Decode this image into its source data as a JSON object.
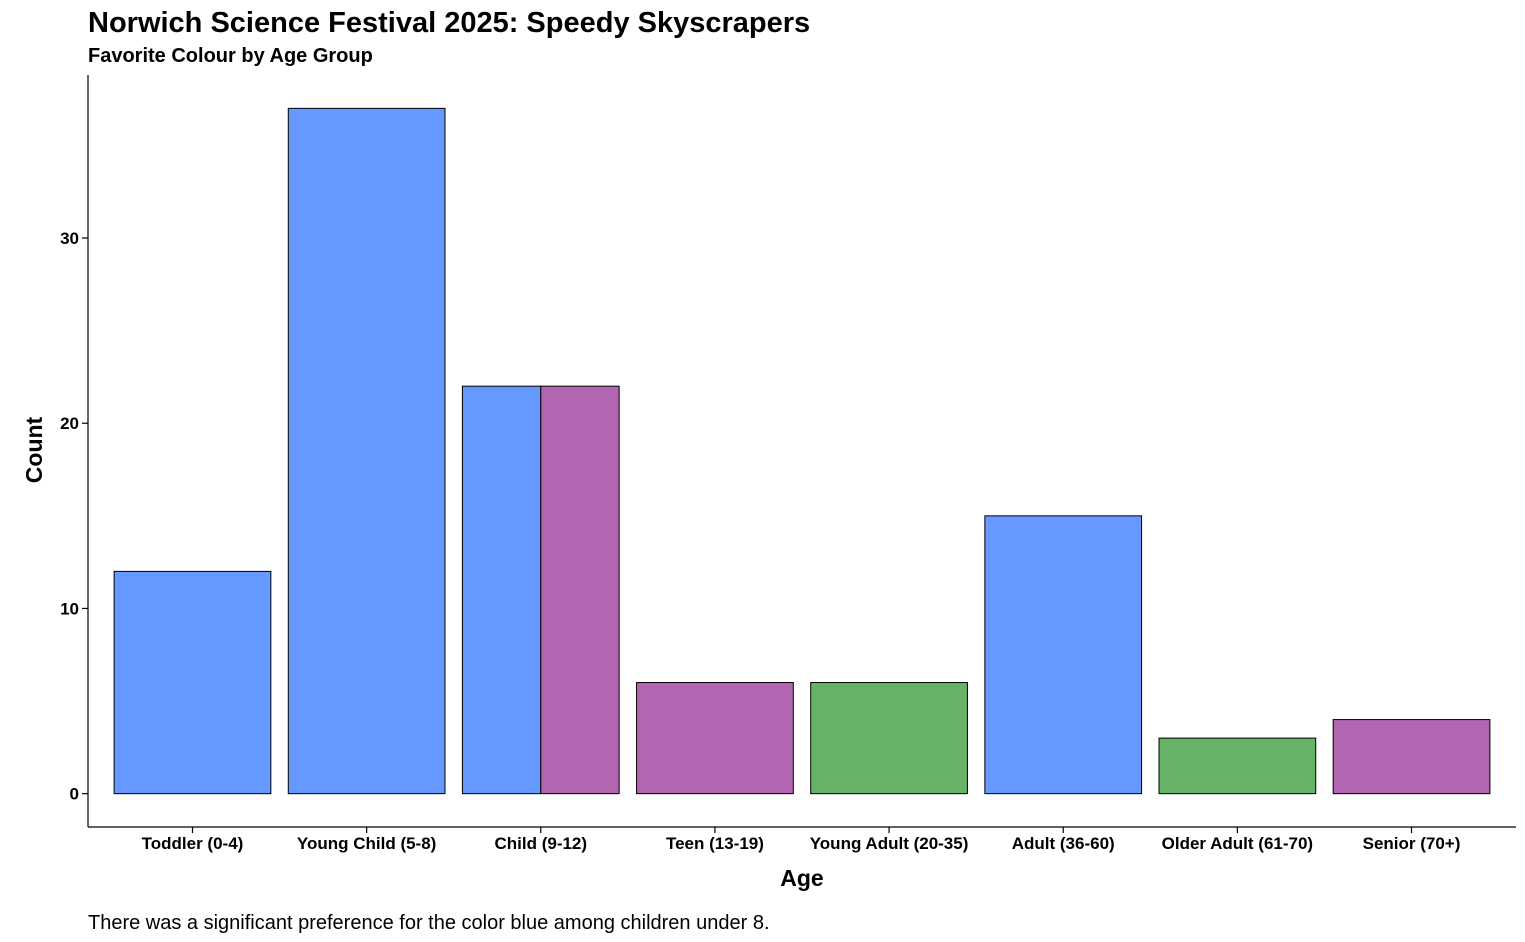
{
  "chart_data": {
    "type": "bar",
    "title": "Norwich Science Festival 2025: Speedy Skyscrapers",
    "subtitle": "Favorite Colour by Age Group",
    "xlabel": "Age",
    "ylabel": "Count",
    "caption": "There was a significant preference for the color blue among children under 8.",
    "ylim": [
      -1.8,
      38.8
    ],
    "yticks": [
      0,
      10,
      20,
      30
    ],
    "categories": [
      "Toddler (0-4)",
      "Young Child (5-8)",
      "Child (9-12)",
      "Teen (13-19)",
      "Young Adult (20-35)",
      "Adult (36-60)",
      "Older Adult (61-70)",
      "Senior (70+)"
    ],
    "series": [
      {
        "color": "#6699FF",
        "values": [
          12,
          37,
          22,
          null,
          null,
          15,
          null,
          null
        ]
      },
      {
        "color": "#B266B2",
        "values": [
          null,
          null,
          22,
          6,
          null,
          null,
          null,
          4
        ]
      },
      {
        "color": "#66B266",
        "values": [
          null,
          null,
          null,
          null,
          6,
          null,
          3,
          null
        ]
      }
    ],
    "bar_outline": "#000000",
    "grid": false,
    "legend": "none"
  }
}
